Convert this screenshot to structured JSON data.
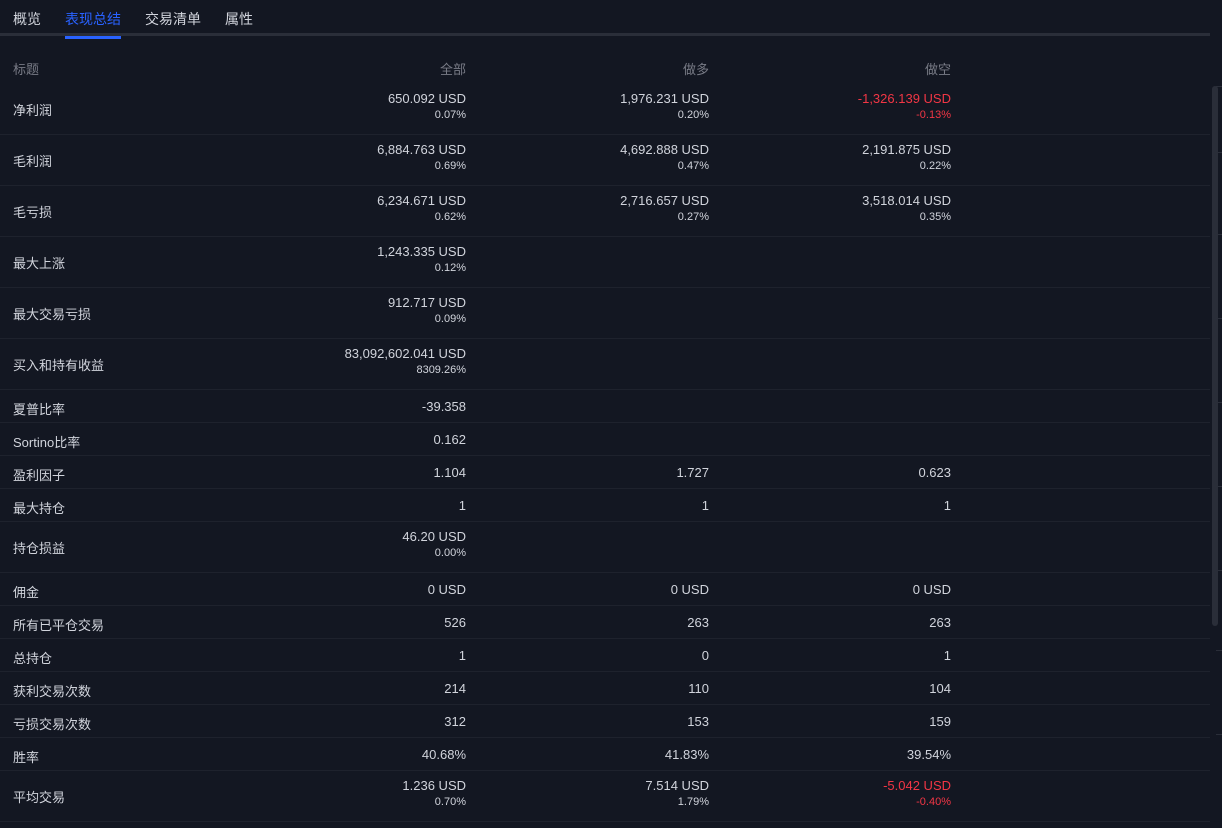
{
  "tabs": [
    {
      "label": "概览"
    },
    {
      "label": "表现总结"
    },
    {
      "label": "交易清单"
    },
    {
      "label": "属性"
    }
  ],
  "header": {
    "title": "标题",
    "all": "全部",
    "long": "做多",
    "short": "做空"
  },
  "rows": [
    {
      "label": "净利润",
      "all": {
        "value": "650.092 USD",
        "pct": "0.07%"
      },
      "long": {
        "value": "1,976.231 USD",
        "pct": "0.20%"
      },
      "short": {
        "value": "-1,326.139 USD",
        "pct": "-0.13%"
      }
    },
    {
      "label": "毛利润",
      "all": {
        "value": "6,884.763 USD",
        "pct": "0.69%"
      },
      "long": {
        "value": "4,692.888 USD",
        "pct": "0.47%"
      },
      "short": {
        "value": "2,191.875 USD",
        "pct": "0.22%"
      }
    },
    {
      "label": "毛亏损",
      "all": {
        "value": "6,234.671 USD",
        "pct": "0.62%"
      },
      "long": {
        "value": "2,716.657 USD",
        "pct": "0.27%"
      },
      "short": {
        "value": "3,518.014 USD",
        "pct": "0.35%"
      }
    },
    {
      "label": "最大上涨",
      "all": {
        "value": "1,243.335 USD",
        "pct": "0.12%"
      }
    },
    {
      "label": "最大交易亏损",
      "all": {
        "value": "912.717 USD",
        "pct": "0.09%"
      }
    },
    {
      "label": "买入和持有收益",
      "all": {
        "value": "83,092,602.041 USD",
        "pct": "8309.26%"
      }
    },
    {
      "label": "夏普比率",
      "all": {
        "value": "-39.358"
      }
    },
    {
      "label": "Sortino比率",
      "all": {
        "value": "0.162"
      }
    },
    {
      "label": "盈利因子",
      "all": {
        "value": "1.104"
      },
      "long": {
        "value": "1.727"
      },
      "short": {
        "value": "0.623"
      }
    },
    {
      "label": "最大持仓",
      "all": {
        "value": "1"
      },
      "long": {
        "value": "1"
      },
      "short": {
        "value": "1"
      }
    },
    {
      "label": "持仓损益",
      "all": {
        "value": "46.20 USD",
        "pct": "0.00%"
      }
    },
    {
      "label": "佣金",
      "all": {
        "value": "0 USD"
      },
      "long": {
        "value": "0 USD"
      },
      "short": {
        "value": "0 USD"
      }
    },
    {
      "label": "所有已平仓交易",
      "all": {
        "value": "526"
      },
      "long": {
        "value": "263"
      },
      "short": {
        "value": "263"
      }
    },
    {
      "label": "总持仓",
      "all": {
        "value": "1"
      },
      "long": {
        "value": "0"
      },
      "short": {
        "value": "1"
      }
    },
    {
      "label": "获利交易次数",
      "all": {
        "value": "214"
      },
      "long": {
        "value": "110"
      },
      "short": {
        "value": "104"
      }
    },
    {
      "label": "亏损交易次数",
      "all": {
        "value": "312"
      },
      "long": {
        "value": "153"
      },
      "short": {
        "value": "159"
      }
    },
    {
      "label": "胜率",
      "all": {
        "value": "40.68%"
      },
      "long": {
        "value": "41.83%"
      },
      "short": {
        "value": "39.54%"
      }
    },
    {
      "label": "平均交易",
      "all": {
        "value": "1.236 USD",
        "pct": "0.70%"
      },
      "long": {
        "value": "7.514 USD",
        "pct": "1.79%"
      },
      "short": {
        "value": "-5.042 USD",
        "pct": "-0.40%"
      }
    }
  ],
  "colors": {
    "background": "#131722",
    "accent": "#2962ff",
    "negative": "#f23645",
    "text": "#d1d4dc",
    "muted": "#787b86"
  }
}
